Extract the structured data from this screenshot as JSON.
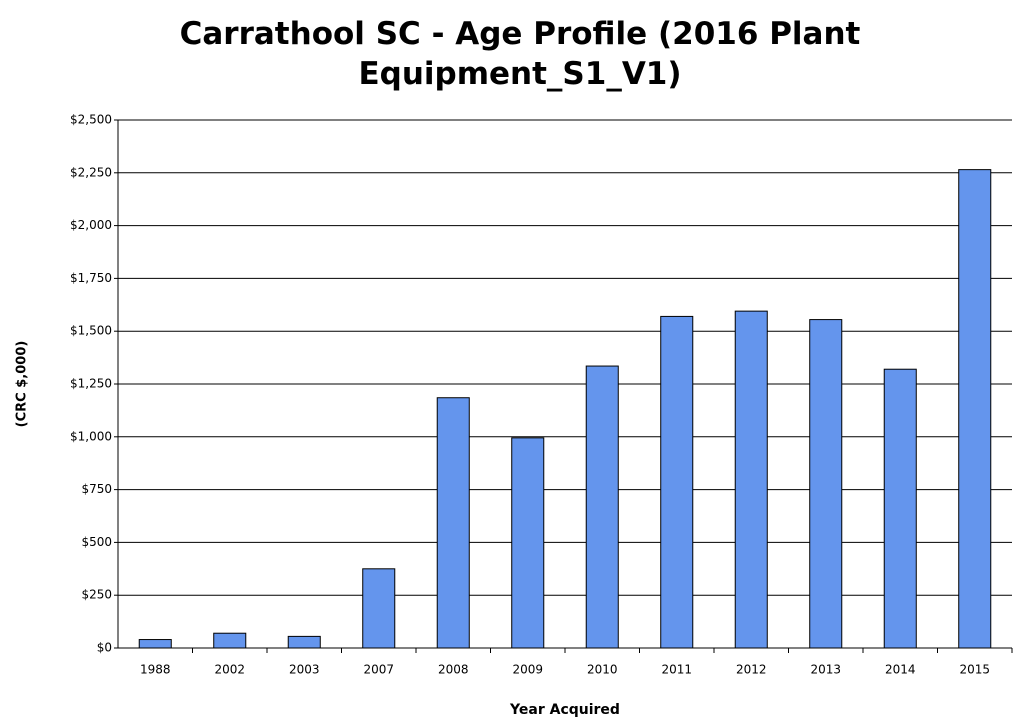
{
  "chart_data": {
    "type": "bar",
    "title": "Carrathool SC - Age Profile (2016 Plant Equipment_S1_V1)",
    "x_label": "Year Acquired",
    "y_label": "(CRC $,000)",
    "categories": [
      "1988",
      "2002",
      "2003",
      "2007",
      "2008",
      "2009",
      "2010",
      "2011",
      "2012",
      "2013",
      "2014",
      "2015"
    ],
    "values": [
      40,
      70,
      55,
      375,
      1185,
      995,
      1335,
      1570,
      1595,
      1555,
      1320,
      2265
    ],
    "color": "#6495ed",
    "ylim": [
      0,
      2500
    ],
    "yticks": [
      {
        "value": 0,
        "label": "$0"
      },
      {
        "value": 250,
        "label": "$250"
      },
      {
        "value": 500,
        "label": "$500"
      },
      {
        "value": 750,
        "label": "$750"
      },
      {
        "value": 1000,
        "label": "$1,000"
      },
      {
        "value": 1250,
        "label": "$1,250"
      },
      {
        "value": 1500,
        "label": "$1,500"
      },
      {
        "value": 1750,
        "label": "$1,750"
      },
      {
        "value": 2000,
        "label": "$2,000"
      },
      {
        "value": 2250,
        "label": "$2,250"
      },
      {
        "value": 2500,
        "label": "$2,500"
      }
    ],
    "grid": true
  }
}
